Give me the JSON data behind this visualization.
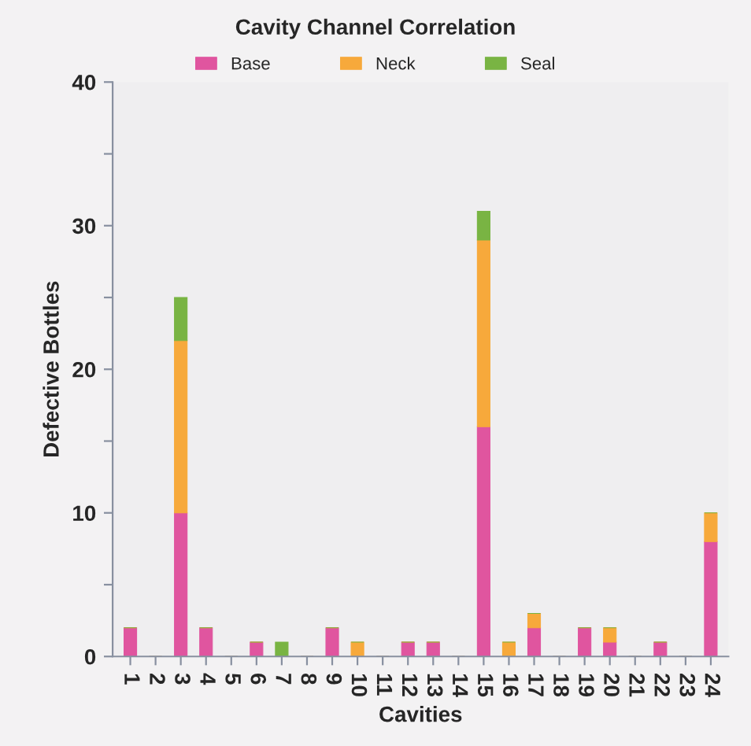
{
  "chart_data": {
    "type": "bar",
    "title": "Cavity Channel Correlation",
    "xlabel": "Cavities",
    "ylabel": "Defective Bottles",
    "categories": [
      "1",
      "2",
      "3",
      "4",
      "5",
      "6",
      "7",
      "8",
      "9",
      "10",
      "11",
      "12",
      "13",
      "14",
      "15",
      "16",
      "17",
      "18",
      "19",
      "20",
      "21",
      "22",
      "23",
      "24"
    ],
    "stacked": true,
    "legend": "top",
    "grid": false,
    "ylim": [
      0,
      40
    ],
    "yticks": [
      0,
      {
        "value": 5,
        "label": null
      },
      10,
      {
        "value": 15,
        "label": null
      },
      20,
      {
        "value": 25,
        "label": null
      },
      30,
      {
        "value": 35,
        "label": null
      },
      40
    ],
    "series": [
      {
        "name": "Base",
        "color": "#e0559f",
        "values": [
          2,
          0,
          10,
          2,
          0,
          1,
          0,
          0,
          2,
          0,
          0,
          1,
          1,
          0,
          16,
          0,
          2,
          0,
          2,
          1,
          0,
          1,
          0,
          8
        ]
      },
      {
        "name": "Neck",
        "color": "#f7a93b",
        "values": [
          0,
          0,
          12,
          0,
          0,
          0,
          0,
          0,
          0,
          1,
          0,
          0,
          0,
          0,
          13,
          1,
          1,
          0,
          0,
          1,
          0,
          0,
          0,
          2
        ]
      },
      {
        "name": "Seal",
        "color": "#79b443",
        "values": [
          0,
          0,
          3,
          0,
          0,
          0,
          1,
          0,
          0,
          0,
          0,
          0,
          0,
          0,
          2,
          0,
          0,
          0,
          0,
          0,
          0,
          0,
          0,
          0
        ]
      }
    ]
  }
}
